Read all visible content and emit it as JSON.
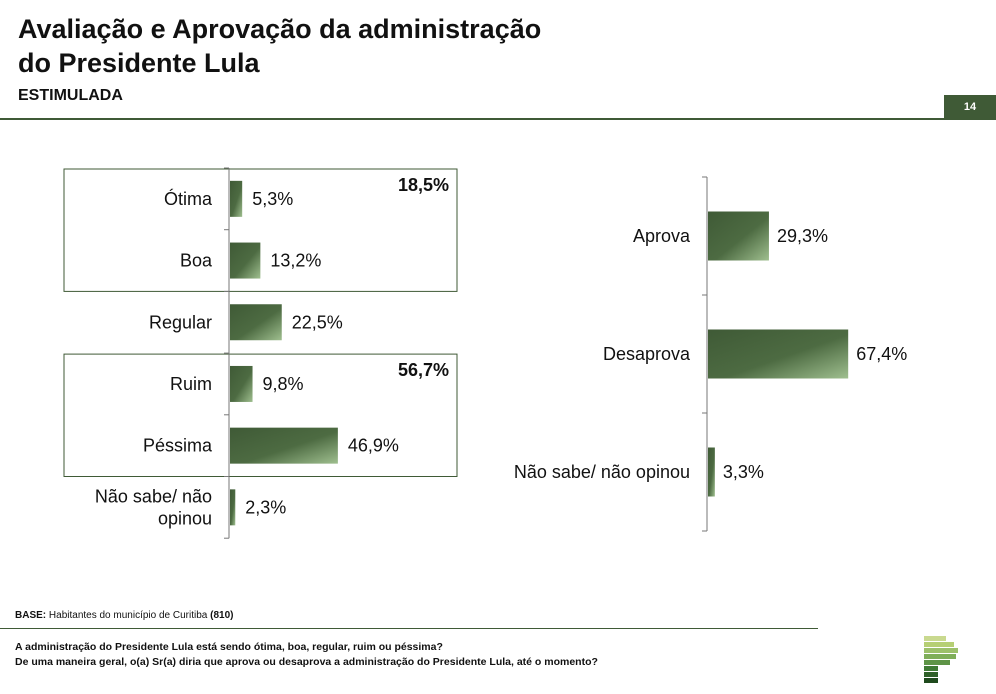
{
  "header": {
    "title_line1": "Avaliação e Aprovação da administração",
    "title_line2": "do Presidente Lula",
    "subtitle": "ESTIMULADA",
    "page_number": "14"
  },
  "footer": {
    "base_label": "BASE:",
    "base_text": "Habitantes do município de Curitiba",
    "base_count": "(810)",
    "question1": "A administração do Presidente Lula está sendo ótima, boa, regular, ruim ou péssima?",
    "question2": "De uma maneira geral, o(a) Sr(a) diria que aprova ou desaprova a administração do Presidente Lula, até o momento?"
  },
  "colors": {
    "accent": "#3f5a36",
    "bar_light": "#8fae7e"
  },
  "chart_data": [
    {
      "type": "bar",
      "orientation": "horizontal",
      "categories": [
        "Ótima",
        "Boa",
        "Regular",
        "Ruim",
        "Péssima",
        "Não sabe/ não opinou"
      ],
      "values": [
        5.3,
        13.2,
        22.5,
        9.8,
        46.9,
        2.3
      ],
      "value_labels": [
        "5,3%",
        "13,2%",
        "22,5%",
        "9,8%",
        "46,9%",
        "2,3%"
      ],
      "groups": [
        {
          "categories": [
            "Ótima",
            "Boa"
          ],
          "total_label": "18,5%"
        },
        {
          "categories": [
            "Ruim",
            "Péssima"
          ],
          "total_label": "56,7%"
        }
      ]
    },
    {
      "type": "bar",
      "orientation": "horizontal",
      "categories": [
        "Aprova",
        "Desaprova",
        "Não sabe/ não opinou"
      ],
      "values": [
        29.3,
        67.4,
        3.3
      ],
      "value_labels": [
        "29,3%",
        "67,4%",
        "3,3%"
      ]
    }
  ]
}
